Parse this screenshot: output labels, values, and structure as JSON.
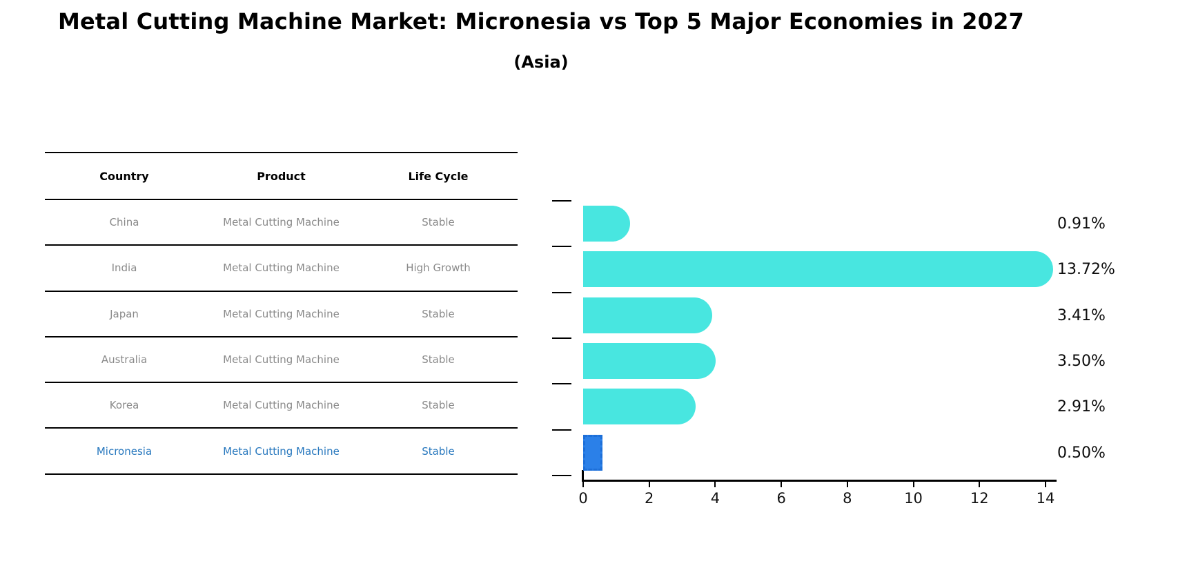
{
  "title": "Metal Cutting Machine Market: Micronesia vs Top 5 Major Economies in 2027",
  "subtitle": "(Asia)",
  "table": {
    "headers": [
      "Country",
      "Product",
      "Life Cycle"
    ],
    "rows": [
      {
        "country": "China",
        "product": "Metal Cutting Machine",
        "life_cycle": "Stable",
        "highlighted": false
      },
      {
        "country": "India",
        "product": "Metal Cutting Machine",
        "life_cycle": "High Growth",
        "highlighted": false
      },
      {
        "country": "Japan",
        "product": "Metal Cutting Machine",
        "life_cycle": "Stable",
        "highlighted": false
      },
      {
        "country": "Australia",
        "product": "Metal Cutting Machine",
        "life_cycle": "Stable",
        "highlighted": false
      },
      {
        "country": "Korea",
        "product": "Metal Cutting Machine",
        "life_cycle": "Stable",
        "highlighted": false
      },
      {
        "country": "Micronesia",
        "product": "Metal Cutting Machine",
        "life_cycle": "Stable",
        "highlighted": true
      }
    ]
  },
  "chart_data": {
    "type": "bar",
    "orientation": "horizontal",
    "title": "Metal Cutting Machine Market: Micronesia vs Top 5 Major Economies in 2027",
    "subtitle": "(Asia)",
    "categories": [
      "China",
      "India",
      "Japan",
      "Australia",
      "Korea",
      "Micronesia"
    ],
    "values": [
      0.91,
      13.72,
      3.41,
      3.5,
      2.91,
      0.5
    ],
    "value_labels": [
      "0.91%",
      "13.72%",
      "3.41%",
      "3.50%",
      "2.91%",
      "0.50%"
    ],
    "x_ticks": [
      0,
      2,
      4,
      6,
      8,
      10,
      12,
      14
    ],
    "xlim": [
      0,
      14
    ],
    "grid": false,
    "legend": "none",
    "highlight_index": 5
  },
  "colors": {
    "bar": "#48e6e0",
    "highlight_bar": "#2b80e8",
    "highlight_bar_edge": "#1d6fd8",
    "highlight_text": "#2878be",
    "table_text": "#8a8a8a",
    "header_text": "#000000"
  }
}
